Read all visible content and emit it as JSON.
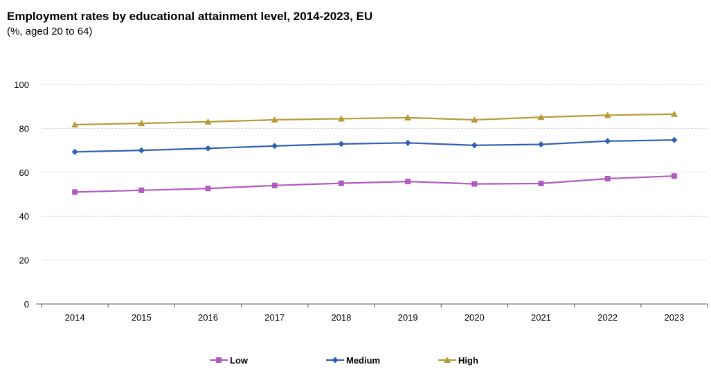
{
  "title": "Employment rates by educational attainment level, 2014-2023, EU",
  "subtitle": "(%, aged 20 to 64)",
  "chart_data": {
    "type": "line",
    "title": "Employment rates by educational attainment level, 2014-2023, EU",
    "subtitle": "(%, aged 20 to 64)",
    "xlabel": "",
    "ylabel": "",
    "categories": [
      "2014",
      "2015",
      "2016",
      "2017",
      "2018",
      "2019",
      "2020",
      "2021",
      "2022",
      "2023"
    ],
    "ylim": [
      0,
      100
    ],
    "yticks": [
      0,
      20,
      40,
      60,
      80,
      100
    ],
    "grid": true,
    "legend_position": "bottom",
    "series": [
      {
        "name": "Low",
        "color": "#b05bbf",
        "marker": "square",
        "values": [
          51.0,
          51.8,
          52.6,
          54.0,
          55.0,
          55.8,
          54.7,
          54.9,
          57.1,
          58.3
        ]
      },
      {
        "name": "Medium",
        "color": "#2e5fb0",
        "marker": "diamond",
        "values": [
          69.3,
          70.0,
          70.9,
          72.0,
          72.9,
          73.4,
          72.3,
          72.7,
          74.2,
          74.7
        ]
      },
      {
        "name": "High",
        "color": "#b89a38",
        "marker": "triangle",
        "values": [
          81.7,
          82.3,
          83.0,
          83.9,
          84.4,
          84.9,
          83.9,
          85.1,
          86.0,
          86.5
        ]
      }
    ]
  }
}
